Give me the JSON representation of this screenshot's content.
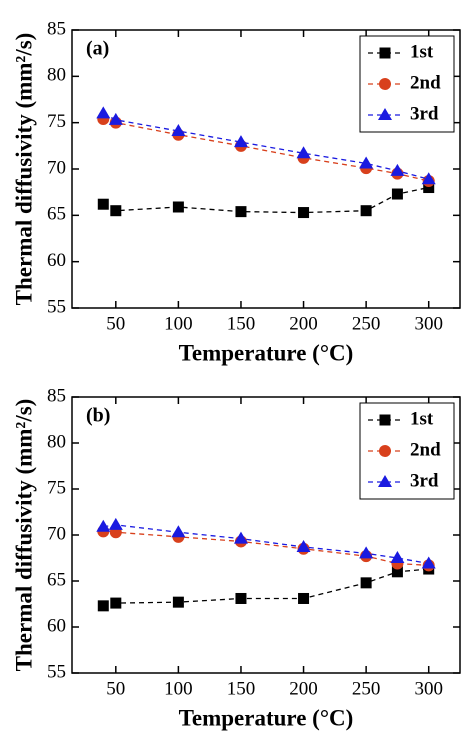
{
  "chart_data": [
    {
      "type": "line",
      "annotation": "(a)",
      "xlabel": "Temperature (°C)",
      "ylabel": "Thermal diffusivity (mm²/s)",
      "x": [
        40,
        50,
        100,
        150,
        200,
        250,
        275,
        300
      ],
      "series": [
        {
          "name": "1st",
          "color": "#000000",
          "marker": "square",
          "values": [
            66.2,
            65.5,
            65.9,
            65.4,
            65.3,
            65.5,
            67.3,
            68.0
          ]
        },
        {
          "name": "2nd",
          "color": "#d8401c",
          "marker": "circle",
          "values": [
            75.4,
            75.0,
            73.7,
            72.5,
            71.2,
            70.1,
            69.5,
            68.7
          ]
        },
        {
          "name": "3rd",
          "color": "#1a1ae0",
          "marker": "triangle",
          "values": [
            76.0,
            75.3,
            74.1,
            72.9,
            71.7,
            70.6,
            69.8,
            68.9
          ]
        }
      ],
      "xlim": [
        15,
        325
      ],
      "ylim": [
        55,
        85
      ],
      "xticks": [
        50,
        100,
        150,
        200,
        250,
        300
      ],
      "yticks": [
        55,
        60,
        65,
        70,
        75,
        80,
        85
      ],
      "linestyle": "dashed",
      "legend": "upper right"
    },
    {
      "type": "line",
      "annotation": "(b)",
      "xlabel": "Temperature (°C)",
      "ylabel": "Thermal diffusivity (mm²/s)",
      "x": [
        40,
        50,
        100,
        150,
        200,
        250,
        275,
        300
      ],
      "series": [
        {
          "name": "1st",
          "color": "#000000",
          "marker": "square",
          "values": [
            62.3,
            62.6,
            62.7,
            63.1,
            63.1,
            64.8,
            66.0,
            66.3
          ]
        },
        {
          "name": "2nd",
          "color": "#d8401c",
          "marker": "circle",
          "values": [
            70.4,
            70.3,
            69.8,
            69.3,
            68.5,
            67.7,
            66.9,
            66.7
          ]
        },
        {
          "name": "3rd",
          "color": "#1a1ae0",
          "marker": "triangle",
          "values": [
            70.9,
            71.1,
            70.3,
            69.6,
            68.7,
            68.0,
            67.5,
            66.9
          ]
        }
      ],
      "xlim": [
        15,
        325
      ],
      "ylim": [
        55,
        85
      ],
      "xticks": [
        50,
        100,
        150,
        200,
        250,
        300
      ],
      "yticks": [
        55,
        60,
        65,
        70,
        75,
        80,
        85
      ],
      "linestyle": "dashed",
      "legend": "upper right"
    }
  ]
}
